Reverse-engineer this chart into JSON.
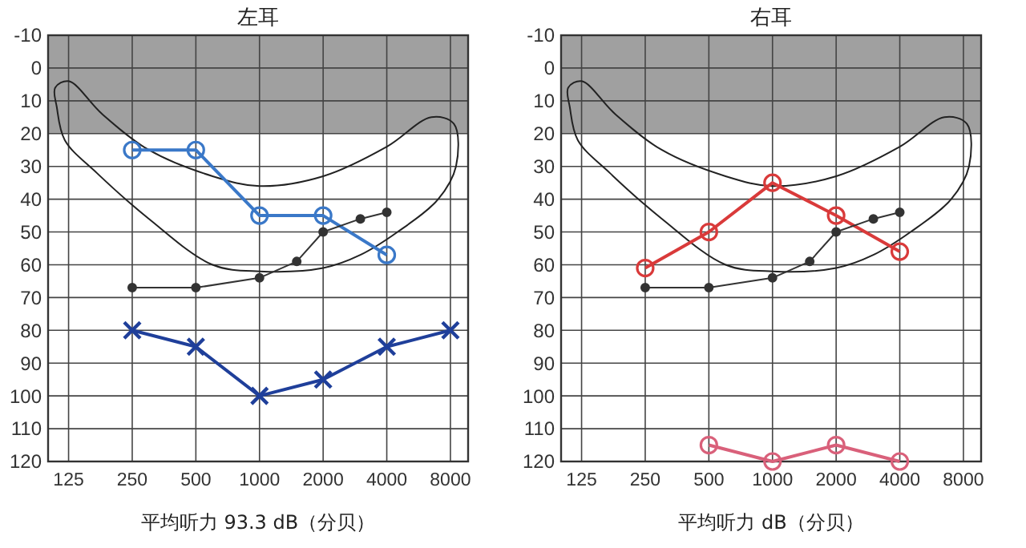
{
  "chart_data": [
    {
      "type": "line",
      "title": "左耳",
      "log": "x",
      "xlim": [
        100,
        9700
      ],
      "xticks": [
        125,
        250,
        500,
        1000,
        2000,
        4000,
        8000
      ],
      "ylim": [
        120,
        -10
      ],
      "yticks": [
        -10,
        0,
        10,
        20,
        30,
        40,
        50,
        60,
        70,
        80,
        90,
        100,
        110,
        120
      ],
      "grid": true,
      "line_style": "solid",
      "bands": [
        {
          "axis": "y",
          "from": -10,
          "to": 20,
          "color": "#a0a0a0"
        }
      ],
      "series": [
        {
          "color": "#3a78c8",
          "marker": "circle",
          "x": [
            250,
            500,
            1000,
            2000,
            4000
          ],
          "values": [
            25,
            25,
            45,
            45,
            57
          ]
        },
        {
          "color": "#1f3f9a",
          "marker": "cross",
          "x": [
            250,
            500,
            1000,
            2000,
            4000,
            8000
          ],
          "values": [
            80,
            85,
            100,
            95,
            85,
            80
          ]
        },
        {
          "color": "#333333",
          "marker": "circle",
          "x": [
            250,
            500,
            1000,
            1500,
            2000,
            3000,
            4000
          ],
          "values": [
            67,
            67,
            64,
            59,
            50,
            46,
            44
          ]
        }
      ],
      "annotations": [
        "平均听力 93.3 dB（分贝）"
      ]
    },
    {
      "type": "line",
      "title": "右耳",
      "log": "x",
      "xlim": [
        100,
        9700
      ],
      "xticks": [
        125,
        250,
        500,
        1000,
        2000,
        4000,
        8000
      ],
      "ylim": [
        120,
        -10
      ],
      "yticks": [
        -10,
        0,
        10,
        20,
        30,
        40,
        50,
        60,
        70,
        80,
        90,
        100,
        110,
        120
      ],
      "grid": true,
      "line_style": "solid",
      "bands": [
        {
          "axis": "y",
          "from": -10,
          "to": 20,
          "color": "#a0a0a0"
        }
      ],
      "series": [
        {
          "color": "#d93a3a",
          "marker": "circle",
          "x": [
            250,
            500,
            1000,
            2000,
            4000
          ],
          "values": [
            61,
            50,
            35,
            45,
            56
          ]
        },
        {
          "color": "#d9607a",
          "marker": "circle",
          "x": [
            500,
            1000,
            2000,
            4000
          ],
          "values": [
            115,
            120,
            115,
            120
          ]
        },
        {
          "color": "#333333",
          "marker": "circle",
          "x": [
            250,
            500,
            1000,
            1500,
            2000,
            3000,
            4000
          ],
          "values": [
            67,
            67,
            64,
            59,
            50,
            46,
            44
          ]
        }
      ],
      "annotations": [
        "平均听力 dB（分贝）"
      ]
    }
  ]
}
